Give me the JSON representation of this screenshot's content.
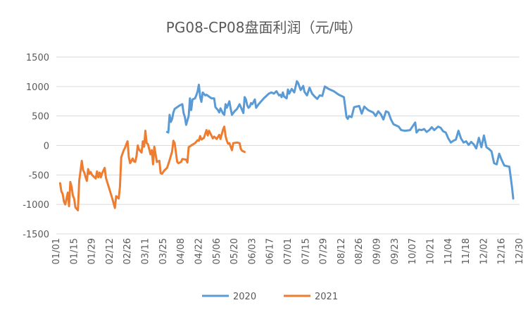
{
  "chart_data": {
    "type": "line",
    "title": "PG08-CP08盘面利润（元/吨）",
    "xlabel": "",
    "ylabel": "",
    "ylim": [
      -1500,
      1500
    ],
    "yticks": [
      1500,
      1000,
      500,
      0,
      -500,
      -1000,
      -1500
    ],
    "xticks": [
      "01/01",
      "01/15",
      "01/29",
      "02/12",
      "02/26",
      "03/11",
      "03/25",
      "04/08",
      "04/22",
      "05/06",
      "05/20",
      "06/03",
      "06/17",
      "07/01",
      "07/15",
      "07/29",
      "08/12",
      "08/26",
      "09/09",
      "09/23",
      "10/07",
      "10/21",
      "11/04",
      "11/18",
      "12/02",
      "12/16",
      "12/30"
    ],
    "grid": true,
    "legend": "bottom",
    "series": [
      {
        "name": "2020",
        "color": "#5B9BD5",
        "points": [
          [
            "03/28",
            230
          ],
          [
            "03/29",
            220
          ],
          [
            "03/30",
            520
          ],
          [
            "03/31",
            400
          ],
          [
            "04/01",
            450
          ],
          [
            "04/02",
            560
          ],
          [
            "04/03",
            620
          ],
          [
            "04/05",
            650
          ],
          [
            "04/07",
            680
          ],
          [
            "04/08",
            690
          ],
          [
            "04/09",
            700
          ],
          [
            "04/10",
            550
          ],
          [
            "04/11",
            480
          ],
          [
            "04/12",
            350
          ],
          [
            "04/14",
            500
          ],
          [
            "04/15",
            800
          ],
          [
            "04/16",
            600
          ],
          [
            "04/17",
            780
          ],
          [
            "04/19",
            800
          ],
          [
            "04/20",
            850
          ],
          [
            "04/21",
            920
          ],
          [
            "04/22",
            1030
          ],
          [
            "04/23",
            820
          ],
          [
            "04/24",
            740
          ],
          [
            "04/25",
            900
          ],
          [
            "04/27",
            850
          ],
          [
            "04/28",
            860
          ],
          [
            "04/30",
            830
          ],
          [
            "05/02",
            800
          ],
          [
            "05/04",
            800
          ],
          [
            "05/05",
            650
          ],
          [
            "05/07",
            600
          ],
          [
            "05/08",
            560
          ],
          [
            "05/09",
            630
          ],
          [
            "05/11",
            540
          ],
          [
            "05/12",
            520
          ],
          [
            "05/13",
            700
          ],
          [
            "05/14",
            640
          ],
          [
            "05/16",
            750
          ],
          [
            "05/17",
            620
          ],
          [
            "05/18",
            520
          ],
          [
            "05/20",
            580
          ],
          [
            "05/22",
            620
          ],
          [
            "05/24",
            700
          ],
          [
            "05/26",
            600
          ],
          [
            "05/27",
            550
          ],
          [
            "05/28",
            820
          ],
          [
            "05/29",
            780
          ],
          [
            "05/30",
            680
          ],
          [
            "05/31",
            640
          ],
          [
            "06/01",
            660
          ],
          [
            "06/02",
            720
          ],
          [
            "06/03",
            700
          ],
          [
            "06/05",
            780
          ],
          [
            "06/06",
            640
          ],
          [
            "06/08",
            700
          ],
          [
            "06/12",
            800
          ],
          [
            "06/16",
            880
          ],
          [
            "06/18",
            900
          ],
          [
            "06/20",
            880
          ],
          [
            "06/22",
            920
          ],
          [
            "06/24",
            850
          ],
          [
            "06/25",
            860
          ],
          [
            "06/26",
            820
          ],
          [
            "06/27",
            900
          ],
          [
            "06/28",
            830
          ],
          [
            "06/30",
            800
          ],
          [
            "07/01",
            950
          ],
          [
            "07/02",
            880
          ],
          [
            "07/04",
            960
          ],
          [
            "07/06",
            900
          ],
          [
            "07/08",
            1090
          ],
          [
            "07/09",
            1060
          ],
          [
            "07/11",
            940
          ],
          [
            "07/13",
            1010
          ],
          [
            "07/14",
            910
          ],
          [
            "07/16",
            850
          ],
          [
            "07/18",
            980
          ],
          [
            "07/20",
            880
          ],
          [
            "07/22",
            830
          ],
          [
            "07/24",
            790
          ],
          [
            "07/26",
            850
          ],
          [
            "07/28",
            840
          ],
          [
            "07/30",
            1000
          ],
          [
            "08/02",
            960
          ],
          [
            "08/06",
            920
          ],
          [
            "08/10",
            860
          ],
          [
            "08/14",
            820
          ],
          [
            "08/16",
            480
          ],
          [
            "08/17",
            450
          ],
          [
            "08/18",
            500
          ],
          [
            "08/20",
            480
          ],
          [
            "08/22",
            650
          ],
          [
            "08/26",
            670
          ],
          [
            "08/28",
            540
          ],
          [
            "08/30",
            660
          ],
          [
            "09/02",
            600
          ],
          [
            "09/04",
            580
          ],
          [
            "09/06",
            560
          ],
          [
            "09/08",
            500
          ],
          [
            "09/10",
            580
          ],
          [
            "09/12",
            530
          ],
          [
            "09/14",
            440
          ],
          [
            "09/16",
            580
          ],
          [
            "09/18",
            560
          ],
          [
            "09/20",
            440
          ],
          [
            "09/22",
            360
          ],
          [
            "09/24",
            340
          ],
          [
            "09/26",
            320
          ],
          [
            "09/28",
            260
          ],
          [
            "10/01",
            250
          ],
          [
            "10/05",
            260
          ],
          [
            "10/09",
            390
          ],
          [
            "10/10",
            220
          ],
          [
            "10/12",
            270
          ],
          [
            "10/14",
            260
          ],
          [
            "10/16",
            280
          ],
          [
            "10/18",
            230
          ],
          [
            "10/20",
            260
          ],
          [
            "10/22",
            310
          ],
          [
            "10/24",
            260
          ],
          [
            "10/27",
            320
          ],
          [
            "10/29",
            300
          ],
          [
            "10/31",
            240
          ],
          [
            "11/02",
            220
          ],
          [
            "11/04",
            120
          ],
          [
            "11/06",
            50
          ],
          [
            "11/08",
            80
          ],
          [
            "11/10",
            100
          ],
          [
            "11/12",
            250
          ],
          [
            "11/14",
            120
          ],
          [
            "11/16",
            50
          ],
          [
            "11/18",
            70
          ],
          [
            "11/20",
            10
          ],
          [
            "11/22",
            60
          ],
          [
            "11/24",
            20
          ],
          [
            "11/26",
            -50
          ],
          [
            "11/28",
            130
          ],
          [
            "11/30",
            -30
          ],
          [
            "12/02",
            170
          ],
          [
            "12/04",
            -30
          ],
          [
            "12/06",
            -60
          ],
          [
            "12/08",
            -100
          ],
          [
            "12/10",
            -300
          ],
          [
            "12/12",
            -320
          ],
          [
            "12/14",
            -140
          ],
          [
            "12/16",
            -250
          ],
          [
            "12/18",
            -340
          ],
          [
            "12/20",
            -350
          ],
          [
            "12/22",
            -360
          ],
          [
            "12/24",
            -700
          ],
          [
            "12/25",
            -900
          ]
        ]
      },
      {
        "name": "2021",
        "color": "#ED7D31",
        "points": [
          [
            "01/04",
            -640
          ],
          [
            "01/05",
            -780
          ],
          [
            "01/06",
            -820
          ],
          [
            "01/07",
            -950
          ],
          [
            "01/08",
            -1000
          ],
          [
            "01/10",
            -800
          ],
          [
            "01/11",
            -1030
          ],
          [
            "01/12",
            -620
          ],
          [
            "01/13",
            -700
          ],
          [
            "01/14",
            -850
          ],
          [
            "01/15",
            -900
          ],
          [
            "01/16",
            -1050
          ],
          [
            "01/18",
            -1100
          ],
          [
            "01/19",
            -600
          ],
          [
            "01/20",
            -440
          ],
          [
            "01/21",
            -260
          ],
          [
            "01/22",
            -420
          ],
          [
            "01/23",
            -460
          ],
          [
            "01/24",
            -540
          ],
          [
            "01/25",
            -600
          ],
          [
            "01/26",
            -400
          ],
          [
            "01/27",
            -480
          ],
          [
            "01/28",
            -450
          ],
          [
            "01/29",
            -500
          ],
          [
            "02/01",
            -560
          ],
          [
            "02/02",
            -440
          ],
          [
            "02/03",
            -540
          ],
          [
            "02/04",
            -460
          ],
          [
            "02/05",
            -540
          ],
          [
            "02/06",
            -470
          ],
          [
            "02/08",
            -380
          ],
          [
            "02/09",
            -550
          ],
          [
            "02/10",
            -620
          ],
          [
            "02/12",
            -760
          ],
          [
            "02/14",
            -900
          ],
          [
            "02/16",
            -1060
          ],
          [
            "02/17",
            -860
          ],
          [
            "02/18",
            -880
          ],
          [
            "02/19",
            -900
          ],
          [
            "02/20",
            -700
          ],
          [
            "02/21",
            -200
          ],
          [
            "02/22",
            -140
          ],
          [
            "02/23",
            -80
          ],
          [
            "02/24",
            -40
          ],
          [
            "02/25",
            20
          ],
          [
            "02/26",
            70
          ],
          [
            "02/27",
            -200
          ],
          [
            "02/28",
            -300
          ],
          [
            "03/01",
            -220
          ],
          [
            "03/02",
            -270
          ],
          [
            "03/03",
            -280
          ],
          [
            "03/04",
            -180
          ],
          [
            "03/05",
            0
          ],
          [
            "03/06",
            -70
          ],
          [
            "03/08",
            -120
          ],
          [
            "03/09",
            70
          ],
          [
            "03/10",
            -20
          ],
          [
            "03/11",
            250
          ],
          [
            "03/12",
            40
          ],
          [
            "03/13",
            20
          ],
          [
            "03/15",
            -150
          ],
          [
            "03/16",
            -80
          ],
          [
            "03/17",
            -320
          ],
          [
            "03/18",
            -20
          ],
          [
            "03/20",
            -280
          ],
          [
            "03/22",
            -260
          ],
          [
            "03/23",
            -470
          ],
          [
            "03/24",
            -480
          ],
          [
            "03/25",
            -450
          ],
          [
            "03/26",
            -420
          ],
          [
            "03/28",
            -380
          ],
          [
            "03/30",
            -250
          ],
          [
            "04/01",
            -100
          ],
          [
            "04/02",
            80
          ],
          [
            "04/03",
            40
          ],
          [
            "04/05",
            -280
          ],
          [
            "04/06",
            -300
          ],
          [
            "04/08",
            -280
          ],
          [
            "04/09",
            -230
          ],
          [
            "04/12",
            -240
          ],
          [
            "04/13",
            -290
          ],
          [
            "04/14",
            -30
          ],
          [
            "04/16",
            0
          ],
          [
            "04/19",
            40
          ],
          [
            "04/21",
            90
          ],
          [
            "04/22",
            80
          ],
          [
            "04/23",
            160
          ],
          [
            "04/24",
            100
          ],
          [
            "04/26",
            130
          ],
          [
            "04/28",
            260
          ],
          [
            "04/29",
            170
          ],
          [
            "04/30",
            250
          ],
          [
            "05/03",
            120
          ],
          [
            "05/04",
            150
          ],
          [
            "05/06",
            110
          ],
          [
            "05/08",
            180
          ],
          [
            "05/09",
            110
          ],
          [
            "05/11",
            270
          ],
          [
            "05/12",
            320
          ],
          [
            "05/13",
            160
          ],
          [
            "05/14",
            80
          ],
          [
            "05/15",
            30
          ],
          [
            "05/16",
            40
          ],
          [
            "05/18",
            -80
          ],
          [
            "05/19",
            40
          ],
          [
            "05/22",
            50
          ],
          [
            "05/24",
            40
          ],
          [
            "05/25",
            -60
          ],
          [
            "05/26",
            -90
          ],
          [
            "05/28",
            -110
          ]
        ]
      }
    ]
  }
}
